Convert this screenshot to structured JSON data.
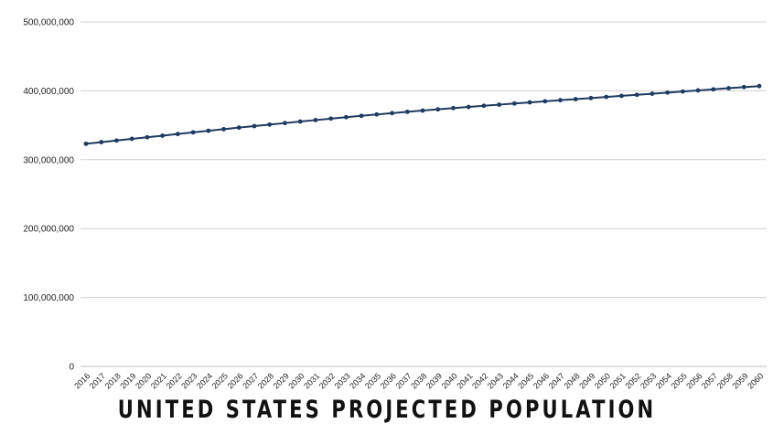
{
  "chart_data": {
    "type": "line",
    "title": "UNITED STATES PROJECTED POPULATION",
    "xlabel": "",
    "ylabel": "",
    "ylim": [
      0,
      500000000
    ],
    "yticks": [
      {
        "value": 0,
        "label": "0"
      },
      {
        "value": 100000000,
        "label": "100,000,000"
      },
      {
        "value": 200000000,
        "label": "200,000,000"
      },
      {
        "value": 300000000,
        "label": "300,000,000"
      },
      {
        "value": 400000000,
        "label": "400,000,000"
      },
      {
        "value": 500000000,
        "label": "500,000,000"
      }
    ],
    "grid": true,
    "legend": "none",
    "line_color": "#1f3a60",
    "categories": [
      "2016",
      "2017",
      "2018",
      "2019",
      "2020",
      "2021",
      "2022",
      "2023",
      "2024",
      "2025",
      "2026",
      "2027",
      "2028",
      "2029",
      "2030",
      "2031",
      "2032",
      "2033",
      "2034",
      "2035",
      "2036",
      "2037",
      "2038",
      "2039",
      "2040",
      "2041",
      "2042",
      "2043",
      "2044",
      "2045",
      "2046",
      "2047",
      "2048",
      "2049",
      "2050",
      "2051",
      "2052",
      "2053",
      "2054",
      "2055",
      "2056",
      "2057",
      "2058",
      "2059",
      "2060"
    ],
    "series": [
      {
        "values": [
          323100000,
          325500000,
          327900000,
          330300000,
          332600000,
          334900000,
          337300000,
          339700000,
          342000000,
          344300000,
          346600000,
          348800000,
          351000000,
          353200000,
          355400000,
          357500000,
          359600000,
          361700000,
          363700000,
          365700000,
          367600000,
          369500000,
          371300000,
          373100000,
          374900000,
          376600000,
          378300000,
          379900000,
          381600000,
          383200000,
          384800000,
          386400000,
          387900000,
          389500000,
          391100000,
          392700000,
          394200000,
          395800000,
          397400000,
          399000000,
          400600000,
          402200000,
          403800000,
          405400000,
          406900000
        ]
      }
    ]
  }
}
